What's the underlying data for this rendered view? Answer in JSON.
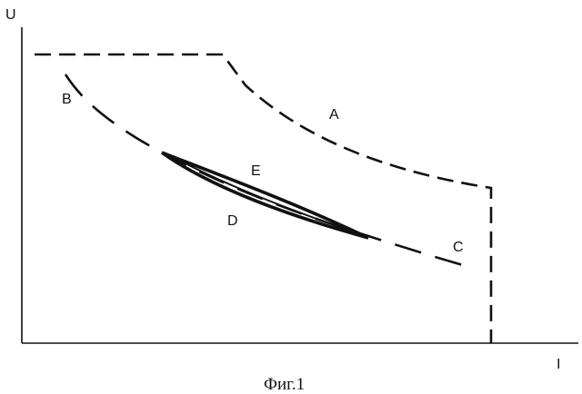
{
  "axes": {
    "y_label": "U",
    "x_label": "I"
  },
  "curves": {
    "A": {
      "label": "A",
      "style": "dashed"
    },
    "B": {
      "label": "B",
      "style": "dashed"
    },
    "C": {
      "label": "C",
      "style": "dashed"
    },
    "D": {
      "label": "D",
      "style": "solid"
    },
    "E": {
      "label": "E",
      "style": "solid"
    }
  },
  "caption": "Фиг.1",
  "colors": {
    "ink": "#111111",
    "background": "#ffffff"
  }
}
